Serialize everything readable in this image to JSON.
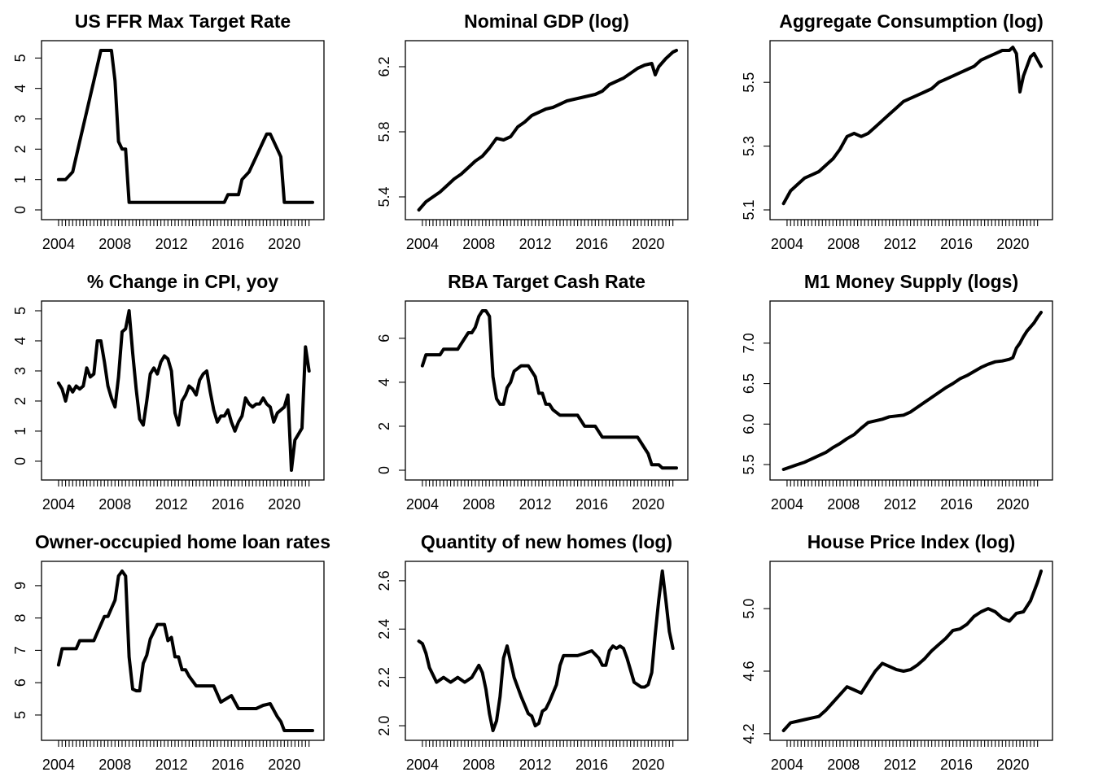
{
  "figure": {
    "background": "#ffffff",
    "line_color": "#000000"
  },
  "chart_data": [
    {
      "type": "line",
      "title": "US FFR Max Target Rate",
      "xlim": [
        2003.6,
        2022.0
      ],
      "ylim": [
        0,
        5.25
      ],
      "x_ticks": [
        2004,
        2008,
        2012,
        2016,
        2020
      ],
      "y_ticks": [
        0,
        1,
        2,
        3,
        4,
        5
      ],
      "y_tick_labels": [
        "0",
        "1",
        "2",
        "3",
        "4",
        "5"
      ],
      "x": [
        2004.0,
        2004.5,
        2005.0,
        2005.5,
        2006.0,
        2006.5,
        2006.75,
        2007.0,
        2007.25,
        2007.5,
        2007.75,
        2008.0,
        2008.25,
        2008.5,
        2008.75,
        2009.0,
        2012.0,
        2015.75,
        2016.0,
        2016.75,
        2017.0,
        2017.5,
        2018.0,
        2018.5,
        2018.75,
        2019.0,
        2019.5,
        2019.75,
        2020.0,
        2020.25,
        2022.0
      ],
      "values": [
        1.0,
        1.0,
        1.25,
        2.25,
        3.25,
        4.25,
        4.75,
        5.25,
        5.25,
        5.25,
        5.25,
        4.25,
        2.25,
        2.0,
        2.0,
        0.25,
        0.25,
        0.25,
        0.5,
        0.5,
        1.0,
        1.25,
        1.75,
        2.25,
        2.5,
        2.5,
        2.0,
        1.75,
        0.25,
        0.25,
        0.25
      ]
    },
    {
      "type": "line",
      "title": "Nominal GDP (log)",
      "xlim": [
        2003.6,
        2022.0
      ],
      "ylim": [
        5.32,
        6.3
      ],
      "x_ticks": [
        2004,
        2008,
        2012,
        2016,
        2020
      ],
      "y_ticks": [
        5.4,
        5.8,
        6.2
      ],
      "y_tick_labels": [
        "5.4",
        "5.8",
        "6.2"
      ],
      "x": [
        2003.75,
        2004.25,
        2004.75,
        2005.25,
        2005.75,
        2006.25,
        2006.75,
        2007.25,
        2007.75,
        2008.25,
        2008.75,
        2009.25,
        2009.75,
        2010.25,
        2010.75,
        2011.25,
        2011.75,
        2012.25,
        2012.75,
        2013.25,
        2013.75,
        2014.25,
        2014.75,
        2015.25,
        2015.75,
        2016.25,
        2016.75,
        2017.25,
        2017.75,
        2018.25,
        2018.75,
        2019.25,
        2019.75,
        2020.25,
        2020.5,
        2020.75,
        2021.25,
        2021.75,
        2022.0
      ],
      "values": [
        5.32,
        5.37,
        5.4,
        5.43,
        5.47,
        5.51,
        5.54,
        5.58,
        5.62,
        5.65,
        5.7,
        5.76,
        5.75,
        5.77,
        5.83,
        5.86,
        5.9,
        5.92,
        5.94,
        5.95,
        5.97,
        5.99,
        6.0,
        6.01,
        6.02,
        6.03,
        6.05,
        6.09,
        6.11,
        6.13,
        6.16,
        6.19,
        6.21,
        6.22,
        6.15,
        6.2,
        6.25,
        6.29,
        6.3
      ]
    },
    {
      "type": "line",
      "title": "Aggregate Consumption (log)",
      "xlim": [
        2003.6,
        2022.0
      ],
      "ylim": [
        5.1,
        5.6
      ],
      "x_ticks": [
        2004,
        2008,
        2012,
        2016,
        2020
      ],
      "y_ticks": [
        5.1,
        5.3,
        5.5
      ],
      "y_tick_labels": [
        "5.1",
        "5.3",
        "5.5"
      ],
      "x": [
        2003.75,
        2004.25,
        2004.75,
        2005.25,
        2005.75,
        2006.25,
        2006.75,
        2007.25,
        2007.75,
        2008.25,
        2008.75,
        2009.25,
        2009.75,
        2010.25,
        2010.75,
        2011.25,
        2011.75,
        2012.25,
        2012.75,
        2013.25,
        2013.75,
        2014.25,
        2014.75,
        2015.25,
        2015.75,
        2016.25,
        2016.75,
        2017.25,
        2017.75,
        2018.25,
        2018.75,
        2019.25,
        2019.75,
        2020.0,
        2020.25,
        2020.5,
        2020.75,
        2021.25,
        2021.5,
        2022.0
      ],
      "values": [
        5.12,
        5.16,
        5.18,
        5.2,
        5.21,
        5.22,
        5.24,
        5.26,
        5.29,
        5.33,
        5.34,
        5.33,
        5.34,
        5.36,
        5.38,
        5.4,
        5.42,
        5.44,
        5.45,
        5.46,
        5.47,
        5.48,
        5.5,
        5.51,
        5.52,
        5.53,
        5.54,
        5.55,
        5.57,
        5.58,
        5.59,
        5.6,
        5.6,
        5.61,
        5.59,
        5.47,
        5.52,
        5.58,
        5.59,
        5.55
      ]
    },
    {
      "type": "line",
      "title": "% Change in CPI, yoy",
      "xlim": [
        2003.6,
        2022.0
      ],
      "ylim": [
        -0.3,
        5.0
      ],
      "x_ticks": [
        2004,
        2008,
        2012,
        2016,
        2020
      ],
      "y_ticks": [
        0,
        1,
        2,
        3,
        4,
        5
      ],
      "y_tick_labels": [
        "0",
        "1",
        "2",
        "3",
        "4",
        "5"
      ],
      "x": [
        2004.0,
        2004.25,
        2004.5,
        2004.75,
        2005.0,
        2005.25,
        2005.5,
        2005.75,
        2006.0,
        2006.25,
        2006.5,
        2006.75,
        2007.0,
        2007.25,
        2007.5,
        2007.75,
        2008.0,
        2008.25,
        2008.5,
        2008.75,
        2009.0,
        2009.25,
        2009.5,
        2009.75,
        2010.0,
        2010.25,
        2010.5,
        2010.75,
        2011.0,
        2011.25,
        2011.5,
        2011.75,
        2012.0,
        2012.25,
        2012.5,
        2012.75,
        2013.0,
        2013.25,
        2013.5,
        2013.75,
        2014.0,
        2014.25,
        2014.5,
        2014.75,
        2015.0,
        2015.25,
        2015.5,
        2015.75,
        2016.0,
        2016.25,
        2016.5,
        2016.75,
        2017.0,
        2017.25,
        2017.5,
        2017.75,
        2018.0,
        2018.25,
        2018.5,
        2018.75,
        2019.0,
        2019.25,
        2019.5,
        2019.75,
        2020.0,
        2020.25,
        2020.5,
        2020.75,
        2021.0,
        2021.25,
        2021.5,
        2021.75
      ],
      "values": [
        2.6,
        2.4,
        2.0,
        2.5,
        2.3,
        2.5,
        2.4,
        2.5,
        3.1,
        2.8,
        2.9,
        4.0,
        4.0,
        3.3,
        2.5,
        2.1,
        1.8,
        2.8,
        4.3,
        4.4,
        5.0,
        3.6,
        2.4,
        1.4,
        1.2,
        2.0,
        2.9,
        3.1,
        2.9,
        3.3,
        3.5,
        3.4,
        3.0,
        1.6,
        1.2,
        2.0,
        2.2,
        2.5,
        2.4,
        2.2,
        2.7,
        2.9,
        3.0,
        2.3,
        1.7,
        1.3,
        1.5,
        1.5,
        1.7,
        1.3,
        1.0,
        1.3,
        1.5,
        2.1,
        1.9,
        1.8,
        1.9,
        1.9,
        2.1,
        1.9,
        1.8,
        1.3,
        1.6,
        1.7,
        1.8,
        2.2,
        -0.3,
        0.7,
        0.9,
        1.1,
        3.8,
        3.0
      ]
    },
    {
      "type": "line",
      "title": "RBA Target Cash Rate",
      "xlim": [
        2003.6,
        2022.0
      ],
      "ylim": [
        0,
        7.25
      ],
      "x_ticks": [
        2004,
        2008,
        2012,
        2016,
        2020
      ],
      "y_ticks": [
        0,
        2,
        4,
        6
      ],
      "y_tick_labels": [
        "0",
        "2",
        "4",
        "6"
      ],
      "x": [
        2004.0,
        2004.25,
        2005.25,
        2005.5,
        2006.5,
        2006.75,
        2007.25,
        2007.5,
        2007.75,
        2008.0,
        2008.25,
        2008.5,
        2008.75,
        2009.0,
        2009.25,
        2009.5,
        2009.75,
        2010.0,
        2010.25,
        2010.5,
        2011.0,
        2011.5,
        2011.75,
        2012.0,
        2012.25,
        2012.5,
        2012.75,
        2013.0,
        2013.25,
        2013.75,
        2015.0,
        2015.5,
        2016.25,
        2016.75,
        2019.25,
        2019.5,
        2019.75,
        2020.0,
        2020.25,
        2020.75,
        2021.0,
        2022.0
      ],
      "values": [
        4.75,
        5.25,
        5.25,
        5.5,
        5.5,
        5.75,
        6.25,
        6.25,
        6.5,
        7.0,
        7.25,
        7.25,
        7.0,
        4.25,
        3.25,
        3.0,
        3.0,
        3.75,
        4.0,
        4.5,
        4.75,
        4.75,
        4.5,
        4.25,
        3.5,
        3.5,
        3.0,
        3.0,
        2.75,
        2.5,
        2.5,
        2.0,
        2.0,
        1.5,
        1.5,
        1.25,
        1.0,
        0.75,
        0.25,
        0.25,
        0.1,
        0.1
      ]
    },
    {
      "type": "line",
      "title": "M1 Money Supply (logs)",
      "xlim": [
        2003.6,
        2022.0
      ],
      "ylim": [
        5.43,
        7.4
      ],
      "x_ticks": [
        2004,
        2008,
        2012,
        2016,
        2020
      ],
      "y_ticks": [
        5.5,
        6.0,
        6.5,
        7.0
      ],
      "y_tick_labels": [
        "5.5",
        "6.0",
        "6.5",
        "7.0"
      ],
      "x": [
        2003.75,
        2004.25,
        2004.75,
        2005.25,
        2005.75,
        2006.25,
        2006.75,
        2007.25,
        2007.75,
        2008.25,
        2008.75,
        2009.25,
        2009.75,
        2010.25,
        2010.75,
        2011.25,
        2011.75,
        2012.25,
        2012.75,
        2013.25,
        2013.75,
        2014.25,
        2014.75,
        2015.25,
        2015.75,
        2016.25,
        2016.75,
        2017.25,
        2017.75,
        2018.25,
        2018.75,
        2019.25,
        2019.75,
        2020.0,
        2020.25,
        2020.5,
        2020.75,
        2021.0,
        2021.25,
        2021.5,
        2021.75,
        2022.0
      ],
      "values": [
        5.44,
        5.47,
        5.5,
        5.53,
        5.57,
        5.61,
        5.65,
        5.71,
        5.76,
        5.82,
        5.87,
        5.95,
        6.02,
        6.04,
        6.06,
        6.09,
        6.1,
        6.11,
        6.15,
        6.21,
        6.27,
        6.33,
        6.39,
        6.45,
        6.5,
        6.56,
        6.6,
        6.65,
        6.7,
        6.74,
        6.77,
        6.78,
        6.8,
        6.82,
        6.94,
        7.0,
        7.08,
        7.15,
        7.2,
        7.25,
        7.32,
        7.38
      ]
    },
    {
      "type": "line",
      "title": "Owner-occupied home loan rates",
      "xlim": [
        2003.6,
        2022.0
      ],
      "ylim": [
        4.52,
        9.45
      ],
      "x_ticks": [
        2004,
        2008,
        2012,
        2016,
        2020
      ],
      "y_ticks": [
        5,
        6,
        7,
        8,
        9
      ],
      "y_tick_labels": [
        "5",
        "6",
        "7",
        "8",
        "9"
      ],
      "x": [
        2004.0,
        2004.25,
        2005.25,
        2005.5,
        2006.5,
        2006.75,
        2007.25,
        2007.5,
        2007.75,
        2008.0,
        2008.25,
        2008.5,
        2008.75,
        2009.0,
        2009.25,
        2009.5,
        2009.75,
        2010.0,
        2010.25,
        2010.5,
        2011.0,
        2011.5,
        2011.75,
        2012.0,
        2012.25,
        2012.5,
        2012.75,
        2013.0,
        2013.25,
        2013.75,
        2015.0,
        2015.5,
        2016.25,
        2016.75,
        2017.5,
        2018.0,
        2018.5,
        2019.0,
        2019.5,
        2019.75,
        2020.0,
        2020.25,
        2021.0,
        2022.0
      ],
      "values": [
        6.55,
        7.05,
        7.05,
        7.3,
        7.3,
        7.55,
        8.05,
        8.05,
        8.3,
        8.55,
        9.3,
        9.45,
        9.3,
        6.8,
        5.8,
        5.75,
        5.75,
        6.6,
        6.85,
        7.35,
        7.8,
        7.8,
        7.3,
        7.4,
        6.8,
        6.8,
        6.4,
        6.4,
        6.2,
        5.9,
        5.9,
        5.4,
        5.6,
        5.2,
        5.2,
        5.2,
        5.3,
        5.35,
        4.95,
        4.8,
        4.52,
        4.52,
        4.52,
        4.52
      ]
    },
    {
      "type": "line",
      "title": "Quantity of new homes (log)",
      "xlim": [
        2003.6,
        2022.0
      ],
      "ylim": [
        1.98,
        2.64
      ],
      "x_ticks": [
        2004,
        2008,
        2012,
        2016,
        2020
      ],
      "y_ticks": [
        2.0,
        2.2,
        2.4,
        2.6
      ],
      "y_tick_labels": [
        "2.0",
        "2.2",
        "2.4",
        "2.6"
      ],
      "x": [
        2003.75,
        2004.0,
        2004.25,
        2004.5,
        2005.0,
        2005.5,
        2006.0,
        2006.5,
        2007.0,
        2007.5,
        2008.0,
        2008.25,
        2008.5,
        2008.75,
        2009.0,
        2009.25,
        2009.5,
        2009.75,
        2010.0,
        2010.5,
        2011.0,
        2011.5,
        2011.75,
        2012.0,
        2012.25,
        2012.5,
        2012.75,
        2013.0,
        2013.5,
        2013.75,
        2014.0,
        2014.5,
        2015.0,
        2015.5,
        2016.0,
        2016.5,
        2016.75,
        2017.0,
        2017.25,
        2017.5,
        2017.75,
        2018.0,
        2018.25,
        2018.5,
        2019.0,
        2019.5,
        2019.75,
        2020.0,
        2020.25,
        2020.5,
        2020.75,
        2021.0,
        2021.25,
        2021.5,
        2021.75
      ],
      "values": [
        2.35,
        2.34,
        2.3,
        2.24,
        2.18,
        2.2,
        2.18,
        2.2,
        2.18,
        2.2,
        2.25,
        2.22,
        2.15,
        2.05,
        1.98,
        2.02,
        2.12,
        2.28,
        2.33,
        2.2,
        2.12,
        2.05,
        2.04,
        2.0,
        2.01,
        2.06,
        2.07,
        2.1,
        2.17,
        2.25,
        2.29,
        2.29,
        2.29,
        2.3,
        2.31,
        2.28,
        2.25,
        2.25,
        2.31,
        2.33,
        2.32,
        2.33,
        2.32,
        2.28,
        2.18,
        2.16,
        2.16,
        2.17,
        2.22,
        2.38,
        2.52,
        2.64,
        2.52,
        2.39,
        2.32
      ]
    },
    {
      "type": "line",
      "title": "House Price Index (log)",
      "xlim": [
        2003.6,
        2022.0
      ],
      "ylim": [
        4.22,
        5.24
      ],
      "x_ticks": [
        2004,
        2008,
        2012,
        2016,
        2020
      ],
      "y_ticks": [
        4.2,
        4.6,
        5.0
      ],
      "y_tick_labels": [
        "4.2",
        "4.6",
        "5.0"
      ],
      "x": [
        2003.75,
        2004.25,
        2004.75,
        2005.25,
        2005.75,
        2006.25,
        2006.75,
        2007.25,
        2007.75,
        2008.25,
        2008.75,
        2009.25,
        2009.75,
        2010.25,
        2010.75,
        2011.25,
        2011.75,
        2012.25,
        2012.75,
        2013.25,
        2013.75,
        2014.25,
        2014.75,
        2015.25,
        2015.75,
        2016.25,
        2016.75,
        2017.25,
        2017.75,
        2018.25,
        2018.75,
        2019.25,
        2019.75,
        2020.25,
        2020.75,
        2021.25,
        2021.75,
        2022.0
      ],
      "values": [
        4.22,
        4.27,
        4.28,
        4.29,
        4.3,
        4.31,
        4.35,
        4.4,
        4.45,
        4.5,
        4.48,
        4.46,
        4.53,
        4.6,
        4.65,
        4.63,
        4.61,
        4.6,
        4.61,
        4.64,
        4.68,
        4.73,
        4.77,
        4.81,
        4.86,
        4.87,
        4.9,
        4.95,
        4.98,
        5.0,
        4.98,
        4.94,
        4.92,
        4.97,
        4.98,
        5.05,
        5.17,
        5.24
      ]
    }
  ]
}
